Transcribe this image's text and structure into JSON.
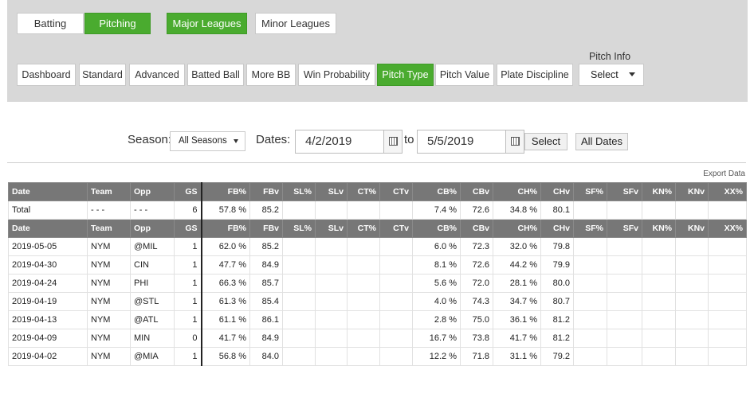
{
  "nav": {
    "level1": [
      {
        "label": "Batting",
        "active": false
      },
      {
        "label": "Pitching",
        "active": true
      }
    ],
    "level2": [
      {
        "label": "Major Leagues",
        "active": true
      },
      {
        "label": "Minor Leagues",
        "active": false
      }
    ],
    "tabs": [
      {
        "label": "Dashboard",
        "active": false
      },
      {
        "label": "Standard",
        "active": false
      },
      {
        "label": "Advanced",
        "active": false
      },
      {
        "label": "Batted Ball",
        "active": false
      },
      {
        "label": "More BB",
        "active": false
      },
      {
        "label": "Win Probability",
        "active": false
      },
      {
        "label": "Pitch Type",
        "active": true
      },
      {
        "label": "Pitch Value",
        "active": false
      },
      {
        "label": "Plate Discipline",
        "active": false
      }
    ],
    "pitch_info": {
      "label": "Pitch Info",
      "selected": "Select"
    }
  },
  "filters": {
    "season_label": "Season:",
    "season_value": "All Seasons",
    "dates_label": "Dates:",
    "date_from": "4/2/2019",
    "to_label": "to",
    "date_to": "5/5/2019",
    "select_button": "Select",
    "all_dates_button": "All Dates"
  },
  "export_label": "Export Data",
  "table": {
    "columns": [
      "Date",
      "Team",
      "Opp",
      "GS",
      "FB%",
      "FBv",
      "SL%",
      "SLv",
      "CT%",
      "CTv",
      "CB%",
      "CBv",
      "CH%",
      "CHv",
      "SF%",
      "SFv",
      "KN%",
      "KNv",
      "XX%"
    ],
    "total": [
      "Total",
      "- - -",
      "- - -",
      "6",
      "57.8 %",
      "85.2",
      "",
      "",
      "",
      "",
      "7.4 %",
      "72.6",
      "34.8 %",
      "80.1",
      "",
      "",
      "",
      "",
      ""
    ],
    "rows": [
      [
        "2019-05-05",
        "NYM",
        "@MIL",
        "1",
        "62.0 %",
        "85.2",
        "",
        "",
        "",
        "",
        "6.0 %",
        "72.3",
        "32.0 %",
        "79.8",
        "",
        "",
        "",
        "",
        ""
      ],
      [
        "2019-04-30",
        "NYM",
        "CIN",
        "1",
        "47.7 %",
        "84.9",
        "",
        "",
        "",
        "",
        "8.1 %",
        "72.6",
        "44.2 %",
        "79.9",
        "",
        "",
        "",
        "",
        ""
      ],
      [
        "2019-04-24",
        "NYM",
        "PHI",
        "1",
        "66.3 %",
        "85.7",
        "",
        "",
        "",
        "",
        "5.6 %",
        "72.0",
        "28.1 %",
        "80.0",
        "",
        "",
        "",
        "",
        ""
      ],
      [
        "2019-04-19",
        "NYM",
        "@STL",
        "1",
        "61.3 %",
        "85.4",
        "",
        "",
        "",
        "",
        "4.0 %",
        "74.3",
        "34.7 %",
        "80.7",
        "",
        "",
        "",
        "",
        ""
      ],
      [
        "2019-04-13",
        "NYM",
        "@ATL",
        "1",
        "61.1 %",
        "86.1",
        "",
        "",
        "",
        "",
        "2.8 %",
        "75.0",
        "36.1 %",
        "81.2",
        "",
        "",
        "",
        "",
        ""
      ],
      [
        "2019-04-09",
        "NYM",
        "MIN",
        "0",
        "41.7 %",
        "84.9",
        "",
        "",
        "",
        "",
        "16.7 %",
        "73.8",
        "41.7 %",
        "81.2",
        "",
        "",
        "",
        "",
        ""
      ],
      [
        "2019-04-02",
        "NYM",
        "@MIA",
        "1",
        "56.8 %",
        "84.0",
        "",
        "",
        "",
        "",
        "12.2 %",
        "71.8",
        "31.1 %",
        "79.2",
        "",
        "",
        "",
        "",
        ""
      ]
    ]
  }
}
